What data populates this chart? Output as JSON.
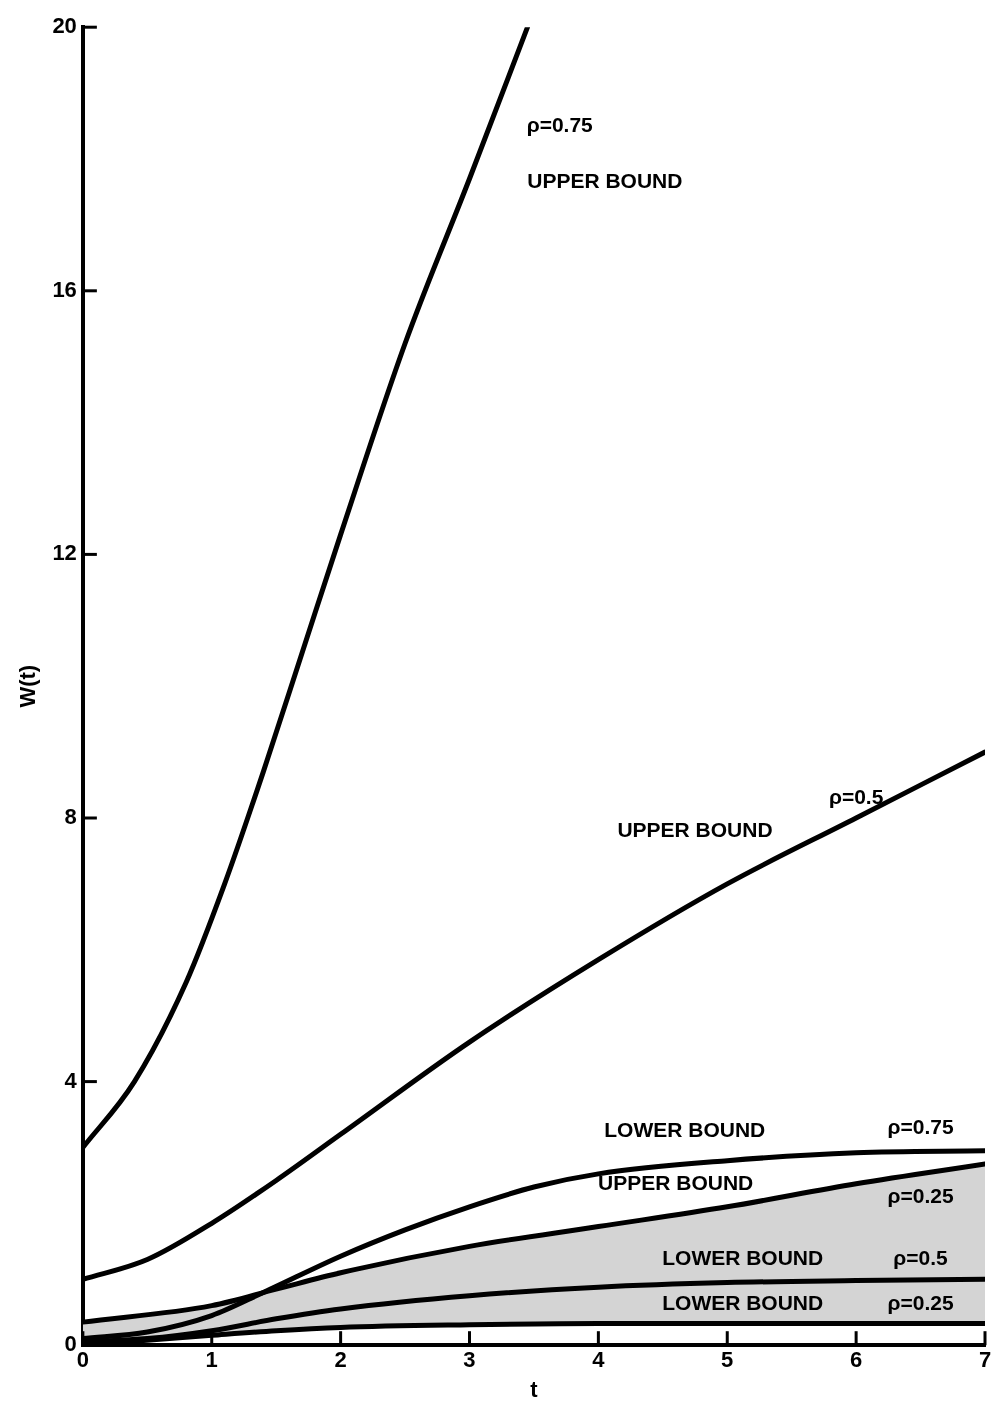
{
  "chart_data": {
    "type": "line",
    "xlabel": "t",
    "ylabel": "W(t)",
    "xlim": [
      0,
      7
    ],
    "ylim": [
      0,
      20
    ],
    "xticks": [
      0,
      1,
      2,
      3,
      4,
      5,
      6,
      7
    ],
    "yticks": [
      0,
      4,
      8,
      12,
      16,
      20
    ],
    "grid": false,
    "legend": false,
    "marker": "none",
    "line_style": "solid",
    "series": [
      {
        "color": "#000000",
        "x": [
          0,
          0.4,
          0.8,
          1.1,
          1.4,
          1.7,
          2.0,
          2.5,
          3.0,
          3.45
        ],
        "values": [
          3.0,
          4.0,
          5.5,
          7.0,
          8.7,
          10.5,
          12.3,
          15.2,
          17.7,
          20
        ]
      },
      {
        "color": "#000000",
        "x": [
          0,
          0.5,
          1,
          1.5,
          2,
          3,
          4,
          5,
          6,
          7
        ],
        "values": [
          1.0,
          1.3,
          1.85,
          2.5,
          3.2,
          4.6,
          5.85,
          7.0,
          8.0,
          9.0
        ]
      },
      {
        "color": "#000000",
        "x": [
          0,
          0.5,
          1,
          1.4,
          2,
          2.5,
          3,
          3.5,
          4,
          5,
          6,
          7
        ],
        "values": [
          0.1,
          0.2,
          0.45,
          0.8,
          1.35,
          1.75,
          2.1,
          2.4,
          2.6,
          2.8,
          2.92,
          2.95
        ]
      },
      {
        "color": "#000000",
        "x": [
          0,
          1,
          1.5,
          2,
          3,
          4,
          5,
          6,
          7
        ],
        "values": [
          0.35,
          0.6,
          0.85,
          1.1,
          1.5,
          1.8,
          2.1,
          2.45,
          2.75
        ],
        "lower": [
          0,
          0.15,
          0.22,
          0.27,
          0.31,
          0.33,
          0.33,
          0.33,
          0.33
        ],
        "upper": [
          0.35,
          0.6,
          0.85,
          1.1,
          1.5,
          1.8,
          2.1,
          2.45,
          2.75
        ]
      },
      {
        "color": "#000000",
        "x": [
          0,
          0.5,
          1,
          1.5,
          2,
          3,
          4,
          5,
          6,
          7
        ],
        "values": [
          0.05,
          0.1,
          0.22,
          0.4,
          0.55,
          0.75,
          0.88,
          0.95,
          0.98,
          1.0
        ]
      },
      {
        "color": "#000000",
        "x": [
          0,
          1,
          1.5,
          2,
          3,
          4,
          5,
          6,
          7
        ],
        "values": [
          0,
          0.15,
          0.22,
          0.27,
          0.31,
          0.33,
          0.33,
          0.33,
          0.33
        ]
      }
    ],
    "annotations": [
      "ρ=0.75",
      "UPPER BOUND",
      "ρ=0.5",
      "UPPER BOUND",
      "LOWER BOUND",
      "ρ=0.75",
      "UPPER BOUND",
      "ρ=0.25",
      "LOWER BOUND",
      "ρ=0.5",
      "LOWER BOUND",
      "ρ=0.25"
    ]
  }
}
